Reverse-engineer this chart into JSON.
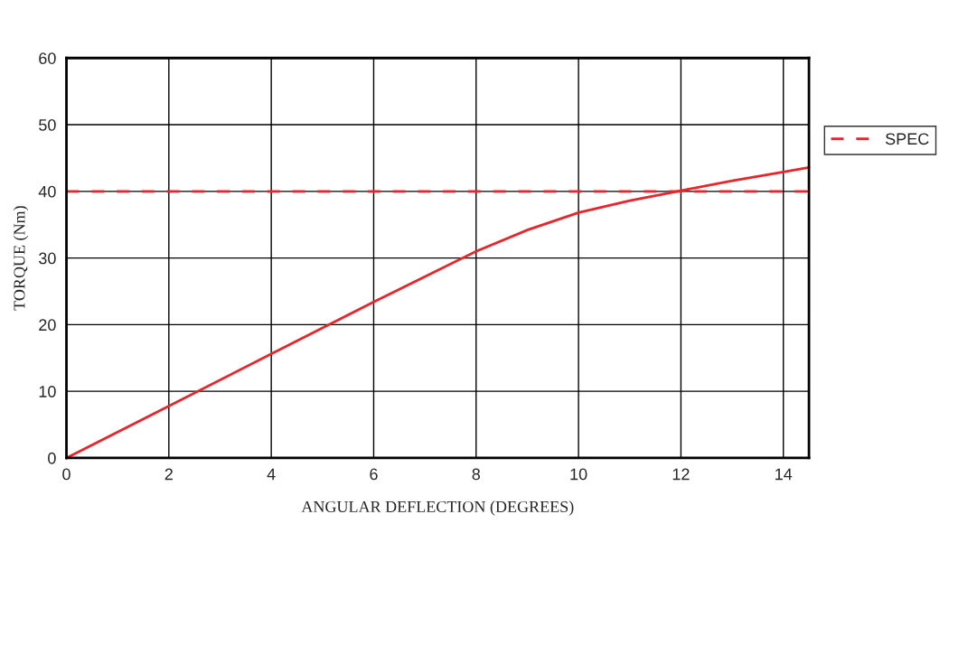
{
  "chart_data": {
    "type": "line",
    "xlabel": "ANGULAR DEFLECTION (DEGREES)",
    "ylabel": "TORQUE (Nm)",
    "xlim": [
      0,
      14.5
    ],
    "ylim": [
      0,
      60
    ],
    "xticks": [
      0,
      2,
      4,
      6,
      8,
      10,
      12,
      14
    ],
    "yticks": [
      0,
      10,
      20,
      30,
      40,
      50,
      60
    ],
    "grid": true,
    "legend": "right",
    "line_style": "solid",
    "series": [
      {
        "color": "#e8252b",
        "x": [
          0,
          2,
          4,
          6,
          7,
          8,
          9,
          10,
          11,
          12,
          13,
          14,
          14.5
        ],
        "values": [
          0,
          7.8,
          15.6,
          23.4,
          27.2,
          31,
          34.2,
          36.8,
          38.6,
          40.1,
          41.6,
          42.9,
          43.6
        ]
      }
    ],
    "ref_lines": [
      {
        "axis": "y",
        "value": 40,
        "label": "SPEC",
        "color": "#e8252b",
        "line_style": "dashed"
      }
    ]
  }
}
